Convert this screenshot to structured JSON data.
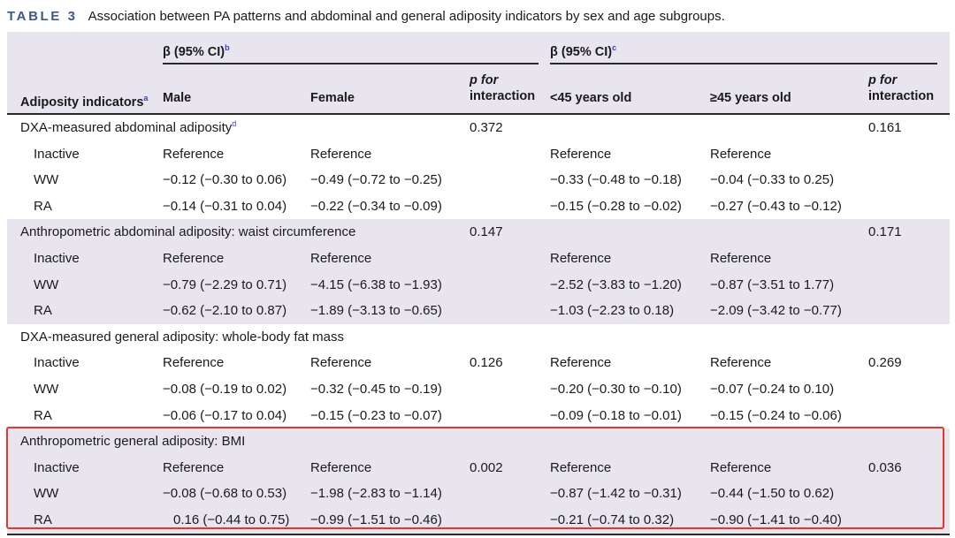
{
  "caption": {
    "label": "TABLE 3",
    "text": "Association between PA patterns and abdominal and general adiposity indicators by sex and age subgroups."
  },
  "header": {
    "beta_sex": "β (95% CI)",
    "beta_sex_sup": "b",
    "beta_age": "β (95% CI)",
    "beta_age_sup": "c",
    "adiposity": "Adiposity indicators",
    "adiposity_sup": "a",
    "male": "Male",
    "female": "Female",
    "p_interaction_1_a": "p for",
    "p_interaction_1_b": "interaction",
    "young": "<45 years old",
    "old": "≥45 years old",
    "p_interaction_2_a": "p for",
    "p_interaction_2_b": "interaction"
  },
  "sections": [
    {
      "title": "DXA-measured abdominal adiposity",
      "title_sup": "d",
      "p1": "0.372",
      "p2": "0.161",
      "rows": [
        {
          "label": "Inactive",
          "male": "Reference",
          "female": "Reference",
          "p1": "",
          "young": "Reference",
          "old": "Reference",
          "p2": ""
        },
        {
          "label": "WW",
          "male": "−0.12 (−0.30 to 0.06)",
          "female": "−0.49 (−0.72 to −0.25)",
          "p1": "",
          "young": "−0.33 (−0.48 to −0.18)",
          "old": "−0.04 (−0.33 to 0.25)",
          "p2": ""
        },
        {
          "label": "RA",
          "male": "−0.14 (−0.31 to 0.04)",
          "female": "−0.22 (−0.34 to −0.09)",
          "p1": "",
          "young": "−0.15 (−0.28 to −0.02)",
          "old": "−0.27 (−0.43 to −0.12)",
          "p2": ""
        }
      ]
    },
    {
      "title": "Anthropometric abdominal adiposity: waist circumference",
      "title_sup": "",
      "p1": "0.147",
      "p2": "0.171",
      "rows": [
        {
          "label": "Inactive",
          "male": "Reference",
          "female": "Reference",
          "p1": "",
          "young": "Reference",
          "old": "Reference",
          "p2": ""
        },
        {
          "label": "WW",
          "male": "−0.79 (−2.29 to 0.71)",
          "female": "−4.15 (−6.38 to −1.93)",
          "p1": "",
          "young": "−2.52 (−3.83 to −1.20)",
          "old": "−0.87 (−3.51 to 1.77)",
          "p2": ""
        },
        {
          "label": "RA",
          "male": "−0.62 (−2.10 to 0.87)",
          "female": "−1.89 (−3.13 to −0.65)",
          "p1": "",
          "young": "−1.03 (−2.23 to 0.18)",
          "old": "−2.09 (−3.42 to −0.77)",
          "p2": ""
        }
      ]
    },
    {
      "title": "DXA-measured general adiposity: whole-body fat mass",
      "title_sup": "",
      "p1": "",
      "p2": "",
      "rows": [
        {
          "label": "Inactive",
          "male": "Reference",
          "female": "Reference",
          "p1": "0.126",
          "young": "Reference",
          "old": "Reference",
          "p2": "0.269"
        },
        {
          "label": "WW",
          "male": "−0.08 (−0.19 to 0.02)",
          "female": "−0.32 (−0.45 to −0.19)",
          "p1": "",
          "young": "−0.20 (−0.30 to −0.10)",
          "old": "−0.07 (−0.24 to 0.10)",
          "p2": ""
        },
        {
          "label": "RA",
          "male": "−0.06 (−0.17 to 0.04)",
          "female": "−0.15 (−0.23 to −0.07)",
          "p1": "",
          "young": "−0.09 (−0.18 to −0.01)",
          "old": "−0.15 (−0.24 to −0.06)",
          "p2": ""
        }
      ]
    },
    {
      "title": "Anthropometric general adiposity: BMI",
      "title_sup": "",
      "p1": "",
      "p2": "",
      "rows": [
        {
          "label": "Inactive",
          "male": "Reference",
          "female": "Reference",
          "p1": "0.002",
          "young": "Reference",
          "old": "Reference",
          "p2": "0.036"
        },
        {
          "label": "WW",
          "male": "−0.08 (−0.68 to 0.53)",
          "female": "−1.98 (−2.83 to −1.14)",
          "p1": "",
          "young": "−0.87 (−1.42 to −0.31)",
          "old": "−0.44 (−1.50 to 0.62)",
          "p2": ""
        },
        {
          "label": "RA",
          "male": "0.16 (−0.44 to 0.75)",
          "female": "−0.99 (−1.51 to −0.46)",
          "p1": "",
          "young": "−0.21 (−0.74 to 0.32)",
          "old": "−0.90 (−1.41 to −0.40)",
          "p2": ""
        }
      ]
    }
  ],
  "colors": {
    "caption_label": "#3d5a8a",
    "shade": "#e9e5ef",
    "highlight_box": "#e8362b",
    "footnote_marker": "#2f3fd0"
  }
}
